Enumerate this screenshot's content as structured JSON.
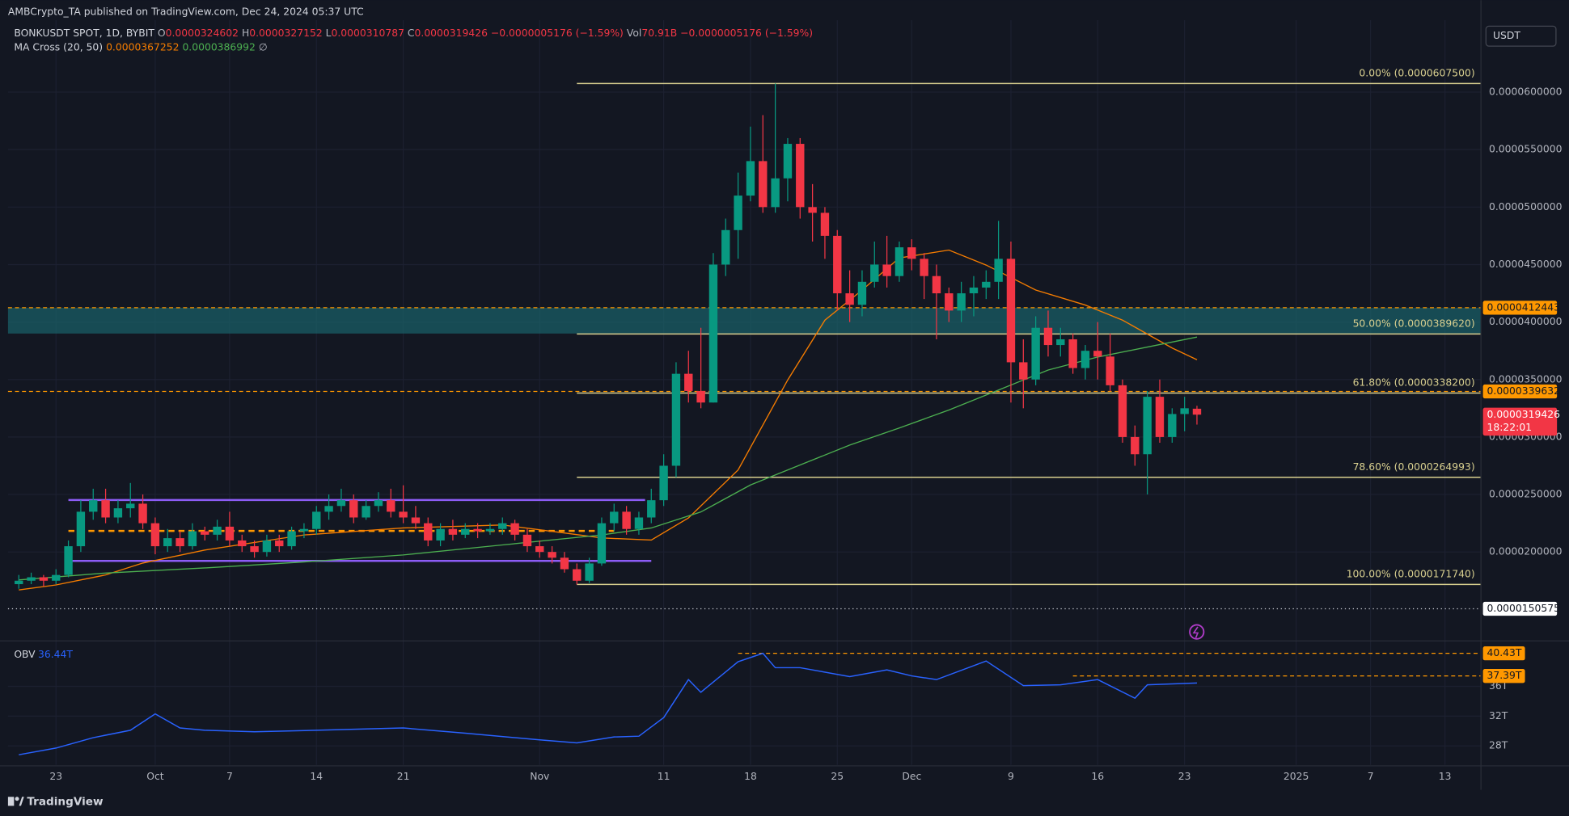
{
  "header": {
    "published": "AMBCrypto_TA published on TradingView.com, Dec 24, 2024 05:37 UTC",
    "symbol": "BONKUSDT SPOT, 1D, BYBIT",
    "ohlc": [
      {
        "key": "O",
        "value": "0.0000324602"
      },
      {
        "key": "H",
        "value": "0.0000327152"
      },
      {
        "key": "L",
        "value": "0.0000310787"
      },
      {
        "key": "C",
        "value": "0.0000319426"
      }
    ],
    "change": "−0.0000005176 (−1.59%)",
    "vol_key": "Vol",
    "vol": "70.91B",
    "vol_change": "−0.0000005176 (−1.59%)"
  },
  "currency": "USDT",
  "indicator": {
    "name": "MA Cross (20, 50)",
    "values": [
      "0.0000367252",
      "0.0000386992"
    ],
    "symbol": "∅"
  },
  "footer": "TradingView",
  "chart_data": [
    {
      "type": "candlestick",
      "up_color": "#089981",
      "down_color": "#f23645",
      "grid": true,
      "xlim": [
        -0.87,
        117.9
      ],
      "xticks": [
        {
          "value": 3,
          "label": "23"
        },
        {
          "value": 11,
          "label": "Oct"
        },
        {
          "value": 17,
          "label": "7"
        },
        {
          "value": 24,
          "label": "14"
        },
        {
          "value": 31,
          "label": "21"
        },
        {
          "value": 42,
          "label": "Nov"
        },
        {
          "value": 52,
          "label": "11"
        },
        {
          "value": 59,
          "label": "18"
        },
        {
          "value": 66,
          "label": "25"
        },
        {
          "value": 72,
          "label": "Dec"
        },
        {
          "value": 80,
          "label": "9"
        },
        {
          "value": 87,
          "label": "16"
        },
        {
          "value": 94,
          "label": "23"
        },
        {
          "value": 103,
          "label": "2025"
        },
        {
          "value": 109,
          "label": "7"
        },
        {
          "value": 115,
          "label": "13"
        }
      ],
      "ylim": [
        1.235e-05,
        6.626e-05
      ],
      "yticks": [
        {
          "value": 6e-05,
          "label": "0.0000600000"
        },
        {
          "value": 5.5e-05,
          "label": "0.0000550000"
        },
        {
          "value": 5e-05,
          "label": "0.0000500000"
        },
        {
          "value": 4.5e-05,
          "label": "0.0000450000"
        },
        {
          "value": 4e-05,
          "label": "0.0000400000"
        },
        {
          "value": 3.5e-05,
          "label": "0.0000350000"
        },
        {
          "value": 3e-05,
          "label": "0.0000300000"
        },
        {
          "value": 2.5e-05,
          "label": "0.0000250000"
        },
        {
          "value": 2e-05,
          "label": "0.0000200000"
        }
      ],
      "candles": [
        [
          1.72e-05,
          1.8e-05,
          1.68e-05,
          1.75e-05
        ],
        [
          1.75e-05,
          1.82e-05,
          1.72e-05,
          1.78e-05
        ],
        [
          1.78e-05,
          1.8e-05,
          1.7e-05,
          1.75e-05
        ],
        [
          1.75e-05,
          1.85e-05,
          1.72e-05,
          1.8e-05
        ],
        [
          1.8e-05,
          2.1e-05,
          1.78e-05,
          2.05e-05
        ],
        [
          2.05e-05,
          2.45e-05,
          2e-05,
          2.35e-05
        ],
        [
          2.35e-05,
          2.55e-05,
          2.28e-05,
          2.45e-05
        ],
        [
          2.45e-05,
          2.55e-05,
          2.25e-05,
          2.3e-05
        ],
        [
          2.3e-05,
          2.45e-05,
          2.25e-05,
          2.38e-05
        ],
        [
          2.38e-05,
          2.6e-05,
          2.3e-05,
          2.42e-05
        ],
        [
          2.42e-05,
          2.5e-05,
          2.2e-05,
          2.25e-05
        ],
        [
          2.25e-05,
          2.3e-05,
          1.98e-05,
          2.05e-05
        ],
        [
          2.05e-05,
          2.2e-05,
          2e-05,
          2.12e-05
        ],
        [
          2.12e-05,
          2.18e-05,
          2e-05,
          2.05e-05
        ],
        [
          2.05e-05,
          2.25e-05,
          2.02e-05,
          2.18e-05
        ],
        [
          2.18e-05,
          2.22e-05,
          2.1e-05,
          2.15e-05
        ],
        [
          2.15e-05,
          2.28e-05,
          2.1e-05,
          2.22e-05
        ],
        [
          2.22e-05,
          2.35e-05,
          2.05e-05,
          2.1e-05
        ],
        [
          2.1e-05,
          2.15e-05,
          2e-05,
          2.05e-05
        ],
        [
          2.05e-05,
          2.1e-05,
          1.95e-05,
          2e-05
        ],
        [
          2e-05,
          2.15e-05,
          1.96e-05,
          2.1e-05
        ],
        [
          2.1e-05,
          2.15e-05,
          2e-05,
          2.05e-05
        ],
        [
          2.05e-05,
          2.22e-05,
          2.02e-05,
          2.18e-05
        ],
        [
          2.18e-05,
          2.25e-05,
          2.12e-05,
          2.2e-05
        ],
        [
          2.2e-05,
          2.4e-05,
          2.15e-05,
          2.35e-05
        ],
        [
          2.35e-05,
          2.5e-05,
          2.28e-05,
          2.4e-05
        ],
        [
          2.4e-05,
          2.55e-05,
          2.35e-05,
          2.45e-05
        ],
        [
          2.45e-05,
          2.5e-05,
          2.25e-05,
          2.3e-05
        ],
        [
          2.3e-05,
          2.45e-05,
          2.28e-05,
          2.4e-05
        ],
        [
          2.4e-05,
          2.52e-05,
          2.35e-05,
          2.45e-05
        ],
        [
          2.45e-05,
          2.55e-05,
          2.3e-05,
          2.35e-05
        ],
        [
          2.35e-05,
          2.58e-05,
          2.25e-05,
          2.3e-05
        ],
        [
          2.3e-05,
          2.4e-05,
          2.2e-05,
          2.25e-05
        ],
        [
          2.25e-05,
          2.3e-05,
          2.05e-05,
          2.1e-05
        ],
        [
          2.1e-05,
          2.25e-05,
          2.05e-05,
          2.2e-05
        ],
        [
          2.2e-05,
          2.28e-05,
          2.1e-05,
          2.15e-05
        ],
        [
          2.15e-05,
          2.25e-05,
          2.12e-05,
          2.2e-05
        ],
        [
          2.2e-05,
          2.25e-05,
          2.12e-05,
          2.18e-05
        ],
        [
          2.18e-05,
          2.25e-05,
          2.15e-05,
          2.2e-05
        ],
        [
          2.2e-05,
          2.3e-05,
          2.15e-05,
          2.25e-05
        ],
        [
          2.25e-05,
          2.28e-05,
          2.1e-05,
          2.15e-05
        ],
        [
          2.15e-05,
          2.2e-05,
          2e-05,
          2.05e-05
        ],
        [
          2.05e-05,
          2.1e-05,
          1.95e-05,
          2e-05
        ],
        [
          2e-05,
          2.05e-05,
          1.9e-05,
          1.95e-05
        ],
        [
          1.95e-05,
          2e-05,
          1.82e-05,
          1.85e-05
        ],
        [
          1.85e-05,
          1.9e-05,
          1.717e-05,
          1.75e-05
        ],
        [
          1.75e-05,
          1.95e-05,
          1.73e-05,
          1.9e-05
        ],
        [
          1.9e-05,
          2.3e-05,
          1.88e-05,
          2.25e-05
        ],
        [
          2.25e-05,
          2.42e-05,
          2.18e-05,
          2.35e-05
        ],
        [
          2.35e-05,
          2.4e-05,
          2.15e-05,
          2.2e-05
        ],
        [
          2.2e-05,
          2.35e-05,
          2.15e-05,
          2.3e-05
        ],
        [
          2.3e-05,
          2.55e-05,
          2.25e-05,
          2.45e-05
        ],
        [
          2.45e-05,
          2.85e-05,
          2.4e-05,
          2.75e-05
        ],
        [
          2.75e-05,
          3.65e-05,
          2.65e-05,
          3.55e-05
        ],
        [
          3.55e-05,
          3.75e-05,
          3.3e-05,
          3.4e-05
        ],
        [
          3.4e-05,
          3.95e-05,
          3.25e-05,
          3.3e-05
        ],
        [
          3.3e-05,
          4.6e-05,
          3.3e-05,
          4.5e-05
        ],
        [
          4.5e-05,
          4.9e-05,
          4.4e-05,
          4.8e-05
        ],
        [
          4.8e-05,
          5.3e-05,
          4.55e-05,
          5.1e-05
        ],
        [
          5.1e-05,
          5.7e-05,
          5.05e-05,
          5.4e-05
        ],
        [
          5.4e-05,
          5.8e-05,
          4.95e-05,
          5e-05
        ],
        [
          5e-05,
          6.075e-05,
          4.95e-05,
          5.25e-05
        ],
        [
          5.25e-05,
          5.6e-05,
          5.05e-05,
          5.55e-05
        ],
        [
          5.55e-05,
          5.6e-05,
          4.9e-05,
          5e-05
        ],
        [
          5e-05,
          5.2e-05,
          4.7e-05,
          4.95e-05
        ],
        [
          4.95e-05,
          5e-05,
          4.55e-05,
          4.75e-05
        ],
        [
          4.75e-05,
          4.8e-05,
          4.1e-05,
          4.25e-05
        ],
        [
          4.25e-05,
          4.45e-05,
          4e-05,
          4.15e-05
        ],
        [
          4.15e-05,
          4.45e-05,
          4.05e-05,
          4.35e-05
        ],
        [
          4.35e-05,
          4.7e-05,
          4.3e-05,
          4.5e-05
        ],
        [
          4.5e-05,
          4.75e-05,
          4.3e-05,
          4.4e-05
        ],
        [
          4.4e-05,
          4.7e-05,
          4.35e-05,
          4.65e-05
        ],
        [
          4.65e-05,
          4.72e-05,
          4.45e-05,
          4.55e-05
        ],
        [
          4.55e-05,
          4.6e-05,
          4.2e-05,
          4.4e-05
        ],
        [
          4.4e-05,
          4.5e-05,
          3.85e-05,
          4.25e-05
        ],
        [
          4.25e-05,
          4.3e-05,
          4e-05,
          4.1e-05
        ],
        [
          4.1e-05,
          4.35e-05,
          4e-05,
          4.25e-05
        ],
        [
          4.25e-05,
          4.4e-05,
          4.05e-05,
          4.3e-05
        ],
        [
          4.3e-05,
          4.45e-05,
          4.2e-05,
          4.35e-05
        ],
        [
          4.35e-05,
          4.88e-05,
          4.2e-05,
          4.55e-05
        ],
        [
          4.55e-05,
          4.7e-05,
          3.3e-05,
          3.65e-05
        ],
        [
          3.65e-05,
          3.85e-05,
          3.25e-05,
          3.5e-05
        ],
        [
          3.5e-05,
          4.05e-05,
          3.45e-05,
          3.95e-05
        ],
        [
          3.95e-05,
          4.1e-05,
          3.7e-05,
          3.8e-05
        ],
        [
          3.8e-05,
          3.95e-05,
          3.7e-05,
          3.85e-05
        ],
        [
          3.85e-05,
          3.9e-05,
          3.55e-05,
          3.6e-05
        ],
        [
          3.6e-05,
          3.8e-05,
          3.5e-05,
          3.75e-05
        ],
        [
          3.75e-05,
          4e-05,
          3.5e-05,
          3.7e-05
        ],
        [
          3.7e-05,
          3.9e-05,
          3.4e-05,
          3.45e-05
        ],
        [
          3.45e-05,
          3.5e-05,
          2.95e-05,
          3e-05
        ],
        [
          3e-05,
          3.1e-05,
          2.75e-05,
          2.85e-05
        ],
        [
          2.85e-05,
          3.4e-05,
          2.5e-05,
          3.35e-05
        ],
        [
          3.35e-05,
          3.5e-05,
          2.95e-05,
          3e-05
        ],
        [
          3e-05,
          3.25e-05,
          2.95e-05,
          3.2e-05
        ],
        [
          3.2e-05,
          3.35e-05,
          3.05e-05,
          3.25e-05
        ],
        [
          3.24602e-05,
          3.27152e-05,
          3.10787e-05,
          3.19426e-05
        ]
      ],
      "series": [
        {
          "color": "#f57c00",
          "x": [
            0,
            3,
            7,
            10,
            15,
            23,
            31,
            39,
            44,
            47,
            51,
            54,
            58,
            62,
            65,
            68,
            71,
            75,
            78,
            82,
            86,
            89,
            93,
            95
          ],
          "values": [
            1.67e-05,
            1.713e-05,
            1.8e-05,
            1.904e-05,
            2.017e-05,
            2.148e-05,
            2.209e-05,
            2.235e-05,
            2.165e-05,
            2.122e-05,
            2.104e-05,
            2.296e-05,
            2.713e-05,
            3.496e-05,
            4.017e-05,
            4.278e-05,
            4.557e-05,
            4.626e-05,
            4.496e-05,
            4.278e-05,
            4.148e-05,
            4.017e-05,
            3.774e-05,
            3.67252e-05
          ]
        },
        {
          "color": "#4caf50",
          "x": [
            0,
            7,
            15,
            23,
            31,
            39,
            47,
            51,
            55,
            59,
            63,
            67,
            71,
            75,
            79,
            83,
            87,
            91,
            95
          ],
          "values": [
            1.757e-05,
            1.817e-05,
            1.861e-05,
            1.913e-05,
            1.974e-05,
            2.061e-05,
            2.148e-05,
            2.209e-05,
            2.348e-05,
            2.583e-05,
            2.757e-05,
            2.93e-05,
            3.078e-05,
            3.235e-05,
            3.409e-05,
            3.583e-05,
            3.696e-05,
            3.783e-05,
            3.86992e-05
          ]
        }
      ],
      "fib_from": 45,
      "fib_color": "#d8cf8f",
      "fib_levels": [
        {
          "value": 6.075e-05,
          "label": "0.00% (0.0000607500)"
        },
        {
          "value": 3.8962e-05,
          "label": "50.00% (0.0000389620)"
        },
        {
          "value": 3.382e-05,
          "label": "61.80% (0.0000338200)"
        },
        {
          "value": 2.64993e-05,
          "label": "78.60% (0.0000264993)"
        },
        {
          "value": 1.7174e-05,
          "label": "100.00% (0.0000171740)"
        }
      ],
      "zone": {
        "range": [
          3.9e-05,
          4.12443e-05
        ],
        "color": "#1a5d66"
      },
      "ranges": [
        {
          "value": 2.452e-05,
          "from": 4,
          "to": 50.5,
          "color": "#8c5cf5",
          "dash": false
        },
        {
          "value": 1.922e-05,
          "from": 4,
          "to": 51,
          "color": "#8c5cf5",
          "dash": false
        },
        {
          "value": 2.183e-05,
          "from": 4,
          "to": 48,
          "color": "#ff9800",
          "dash": true
        }
      ],
      "price_lines": [
        {
          "value": 4.12443e-05,
          "label": "0.0000412443",
          "color": "#ff9800"
        },
        {
          "value": 3.39632e-05,
          "label": "0.0000339632",
          "color": "#ff9800"
        }
      ],
      "low_line": {
        "value": 1.50575e-05,
        "label": "0.0000150575"
      },
      "last_price": {
        "value": 3.19426e-05,
        "label": "0.0000319426",
        "countdown": "18:22:01",
        "color": "#f23645"
      }
    },
    {
      "type": "line",
      "title": "OBV",
      "last_label": "36.44T",
      "color": "#2962ff",
      "grid": true,
      "xlim": [
        -0.87,
        117.9
      ],
      "ylim": [
        25.45,
        41.56
      ],
      "yticks": [
        {
          "value": 28,
          "label": "28T"
        },
        {
          "value": 32,
          "label": "32T"
        },
        {
          "value": 36,
          "label": "36T"
        }
      ],
      "x": [
        0,
        3,
        6,
        9,
        11,
        13,
        15,
        19,
        24,
        31,
        36,
        42,
        45,
        48,
        50,
        52,
        54,
        55,
        58,
        60,
        61,
        63,
        67,
        70,
        72,
        74,
        78,
        81,
        84,
        87,
        90,
        91,
        95
      ],
      "values": [
        26.8,
        27.7,
        29.1,
        30.1,
        32.3,
        30.4,
        30.1,
        29.9,
        30.1,
        30.4,
        29.7,
        28.8,
        28.4,
        29.2,
        29.3,
        31.8,
        36.9,
        35.2,
        39.3,
        40.43,
        38.5,
        38.5,
        37.3,
        38.2,
        37.4,
        36.9,
        39.4,
        36.1,
        36.2,
        36.9,
        34.4,
        36.2,
        36.44
      ],
      "levels": [
        {
          "value": 40.43,
          "label": "40.43T",
          "from": 58,
          "color": "#ff9800"
        },
        {
          "value": 37.39,
          "label": "37.39T",
          "from": 85,
          "color": "#ff9800"
        }
      ]
    }
  ]
}
